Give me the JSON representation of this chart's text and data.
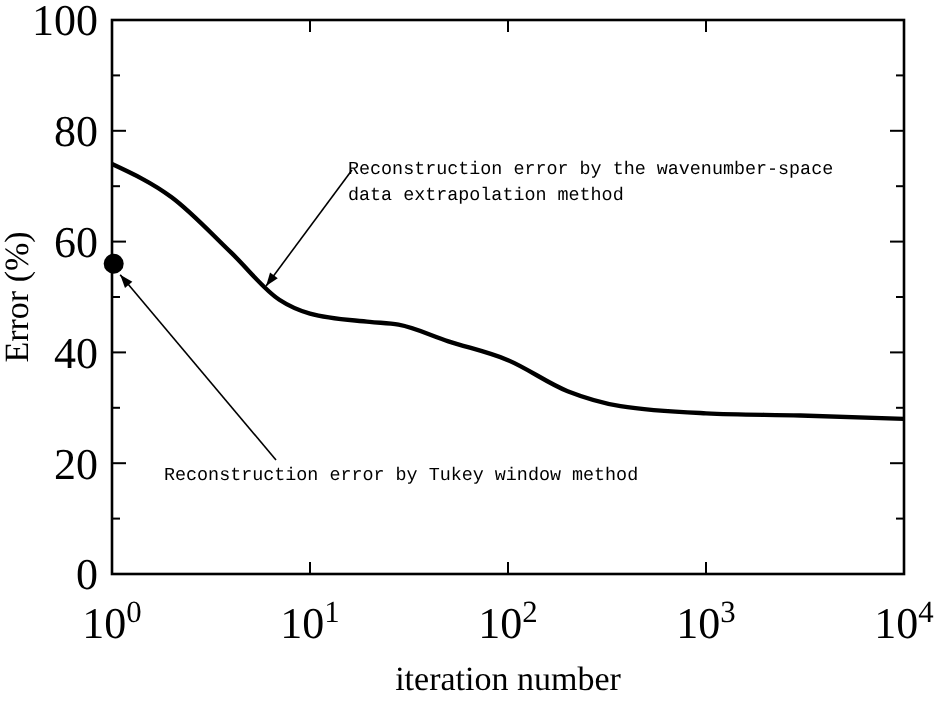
{
  "chart_data": {
    "type": "line",
    "xlabel": "iteration number",
    "ylabel": "Error (%)",
    "log": "x",
    "xlim": [
      1,
      10000
    ],
    "xticks": [
      {
        "value": 1,
        "label": "10$^{0}$"
      },
      {
        "value": 10,
        "label": "10$^{1}$"
      },
      {
        "value": 100,
        "label": "10$^{2}$"
      },
      {
        "value": 1000,
        "label": "10$^{3}$"
      },
      {
        "value": 10000,
        "label": "10$^{4}$"
      }
    ],
    "ylim": [
      0,
      100
    ],
    "yticks": [
      0,
      {
        "value": 10,
        "label": null
      },
      20,
      {
        "value": 30,
        "label": null
      },
      40,
      {
        "value": 50,
        "label": null
      },
      60,
      {
        "value": 70,
        "label": null
      },
      80,
      {
        "value": 90,
        "label": null
      },
      100
    ],
    "grid": false,
    "marker": "none",
    "line_style": "solid",
    "series": [
      {
        "color": "#000000",
        "x": [
          1,
          2,
          4,
          7,
          10,
          20,
          28,
          50,
          100,
          200,
          370,
          1000,
          3000,
          10000
        ],
        "values": [
          74,
          68,
          58,
          49.5,
          47,
          45.5,
          45,
          42,
          38.6,
          33,
          30.3,
          29,
          28.6,
          28
        ]
      },
      {
        "type": "scatter",
        "color": "#000000",
        "marker": "circle",
        "x": [
          1.02
        ],
        "values": [
          56
        ]
      }
    ],
    "annotations": [
      {
        "text": "Reconstruction error by the wavenumber-space data extrapolation method",
        "x": 6,
        "y": 52
      },
      {
        "text": "Reconstruction error by Tukey window method",
        "x": 1.1,
        "y": 54
      }
    ]
  }
}
